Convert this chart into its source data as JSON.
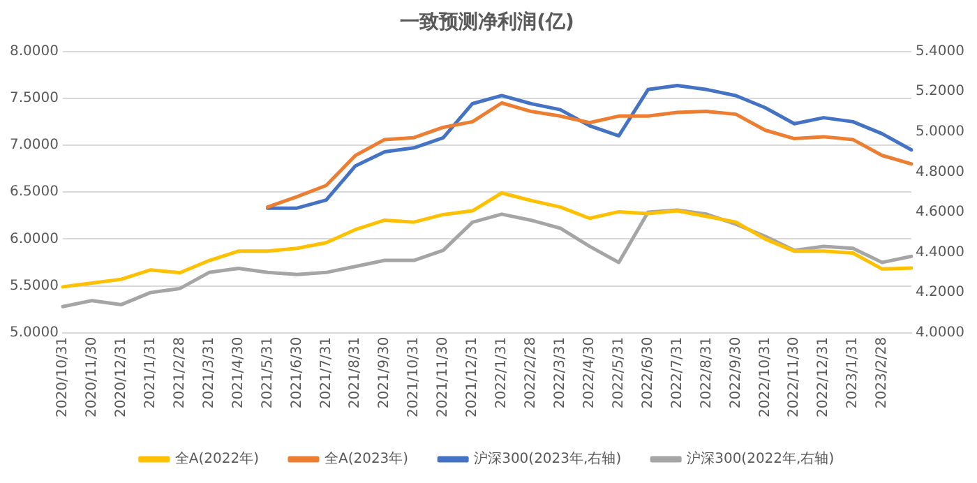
{
  "chart_data": {
    "type": "line",
    "title": "一致预测净利润(亿)",
    "categories": [
      "2020/10/31",
      "2020/11/30",
      "2020/12/31",
      "2021/1/31",
      "2021/2/28",
      "2021/3/31",
      "2021/4/30",
      "2021/5/31",
      "2021/6/30",
      "2021/7/31",
      "2021/8/31",
      "2021/9/30",
      "2021/10/31",
      "2021/11/30",
      "2021/12/31",
      "2022/1/31",
      "2022/2/28",
      "2022/3/31",
      "2022/4/30",
      "2022/5/31",
      "2022/6/30",
      "2022/7/31",
      "2022/8/31",
      "2022/9/30",
      "2022/10/31",
      "2022/11/30",
      "2022/12/31",
      "2023/1/31",
      "2023/2/28",
      null
    ],
    "series": [
      {
        "name": "全A(2022年)",
        "color": "#ffc000",
        "values": [
          5.49,
          5.53,
          5.57,
          5.67,
          5.64,
          5.77,
          5.87,
          5.87,
          5.9,
          5.96,
          6.1,
          6.2,
          6.18,
          6.26,
          6.3,
          6.49,
          6.41,
          6.34,
          6.22,
          6.29,
          6.27,
          6.3,
          6.24,
          6.18,
          6,
          5.87,
          5.87,
          5.85,
          5.68,
          5.69
        ]
      },
      {
        "name": "全A(2023年)",
        "color": "#ed7d31",
        "values": [
          null,
          null,
          null,
          null,
          null,
          null,
          null,
          6.34,
          6.45,
          6.57,
          6.89,
          7.06,
          7.08,
          7.19,
          7.25,
          7.45,
          7.36,
          7.31,
          7.24,
          7.31,
          7.31,
          7.35,
          7.36,
          7.33,
          7.16,
          7.07,
          7.09,
          7.06,
          6.89,
          6.8
        ]
      },
      {
        "name": "沪深300(2023年,右轴)",
        "color": "#4472c4",
        "axis": "y2",
        "values": [
          null,
          null,
          null,
          null,
          null,
          null,
          null,
          4.62,
          4.62,
          4.66,
          4.83,
          4.9,
          4.92,
          4.97,
          5.14,
          5.18,
          5.14,
          5.11,
          5.03,
          4.98,
          5.21,
          5.23,
          5.21,
          5.18,
          5.12,
          5.04,
          5.07,
          5.05,
          4.99,
          4.91
        ]
      },
      {
        "name": "沪深300(2022年,右轴)",
        "color": "#a5a5a5",
        "axis": "y2",
        "values": [
          4.13,
          4.16,
          4.14,
          4.2,
          4.22,
          4.3,
          4.32,
          4.3,
          4.29,
          4.3,
          4.33,
          4.36,
          4.36,
          4.41,
          4.55,
          4.59,
          4.56,
          4.52,
          4.43,
          4.35,
          4.6,
          4.61,
          4.59,
          4.54,
          4.48,
          4.41,
          4.43,
          4.42,
          4.35,
          4.38
        ]
      }
    ],
    "ylim": [
      5,
      8
    ],
    "yticks": [
      {
        "value": 5,
        "label": "5.0000"
      },
      {
        "value": 5.5,
        "label": "5.5000"
      },
      {
        "value": 6,
        "label": "6.0000"
      },
      {
        "value": 6.5,
        "label": "6.5000"
      },
      {
        "value": 7,
        "label": "7.0000"
      },
      {
        "value": 7.5,
        "label": "7.5000"
      },
      {
        "value": 8,
        "label": "8.0000"
      }
    ],
    "y2lim": [
      4,
      5.4
    ],
    "y2ticks": [
      {
        "value": 4,
        "label": "4.0000"
      },
      {
        "value": 4.2,
        "label": "4.2000"
      },
      {
        "value": 4.4,
        "label": "4.4000"
      },
      {
        "value": 4.6,
        "label": "4.6000"
      },
      {
        "value": 4.8,
        "label": "4.8000"
      },
      {
        "value": 5,
        "label": "5.0000"
      },
      {
        "value": 5.2,
        "label": "5.2000"
      },
      {
        "value": 5.4,
        "label": "5.4000"
      }
    ],
    "grid": "y",
    "legend": "bottom",
    "marker": "none",
    "line_style": "solid"
  }
}
